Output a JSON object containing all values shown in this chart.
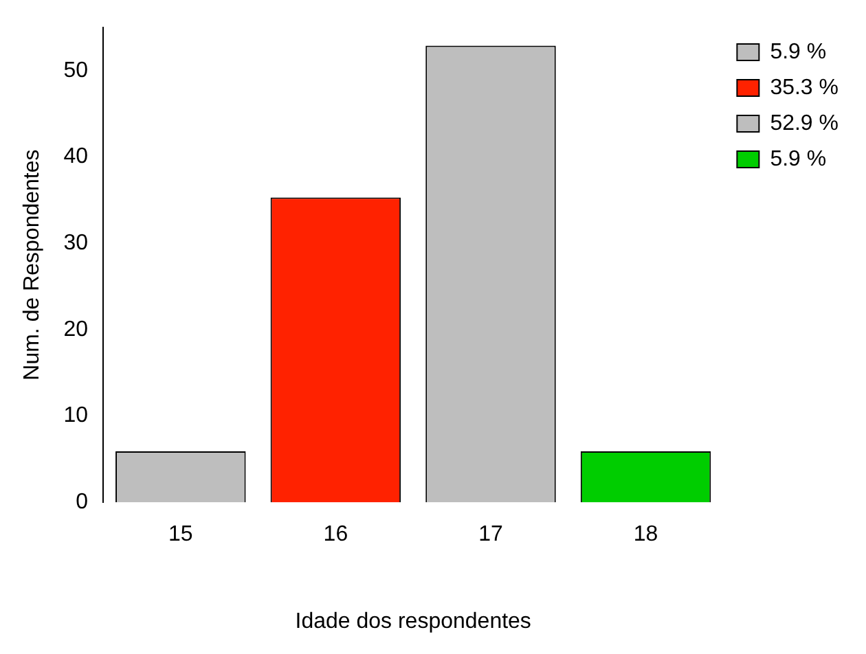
{
  "chart_data": {
    "type": "bar",
    "xlabel": "Idade dos respondentes",
    "ylabel": "Num. de Respondentes",
    "categories": [
      "15",
      "16",
      "17",
      "18"
    ],
    "series": [
      {
        "name": "5.9 %",
        "color": "#bebebe",
        "values": [
          5.9,
          null,
          null,
          null
        ]
      },
      {
        "name": "35.3 %",
        "color": "#ff2200",
        "values": [
          null,
          35.3,
          null,
          null
        ]
      },
      {
        "name": "52.9 %",
        "color": "#bebebe",
        "values": [
          null,
          null,
          52.9,
          null
        ]
      },
      {
        "name": "5.9 %",
        "color": "#00cd00",
        "values": [
          null,
          null,
          null,
          5.9
        ]
      }
    ],
    "ylim": [
      0,
      55
    ],
    "yticks": [
      0,
      10,
      20,
      30,
      40,
      50
    ],
    "grid": false,
    "legend": "top right"
  }
}
